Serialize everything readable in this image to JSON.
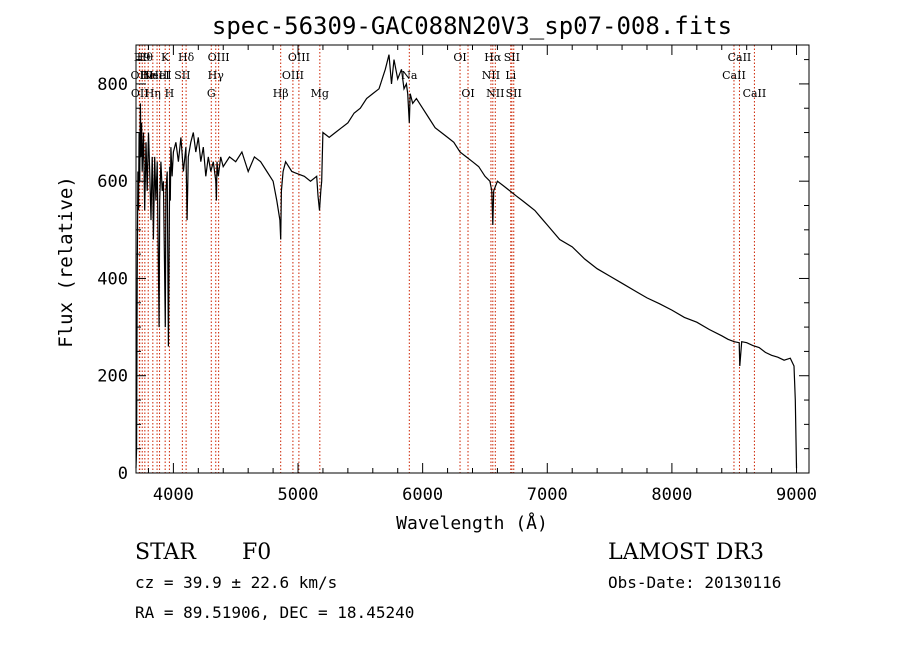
{
  "chart_data": {
    "type": "line",
    "title": "spec-56309-GAC088N20V3_sp07-008.fits",
    "xlabel": "Wavelength (Å)",
    "ylabel": "Flux (relative)",
    "xlim": [
      3700,
      9100
    ],
    "ylim": [
      0,
      880
    ],
    "xticks": [
      4000,
      5000,
      6000,
      7000,
      8000,
      9000
    ],
    "xtick_labels": [
      "4000",
      "5000",
      "6000",
      "7000",
      "8000",
      "9000"
    ],
    "yticks": [
      0,
      200,
      400,
      600,
      800
    ],
    "ytick_labels": [
      "0",
      "200",
      "400",
      "600",
      "800"
    ],
    "series": [
      {
        "name": "flux",
        "x": [
          3700,
          3705,
          3710,
          3715,
          3720,
          3725,
          3730,
          3735,
          3740,
          3745,
          3750,
          3760,
          3770,
          3780,
          3790,
          3800,
          3810,
          3820,
          3830,
          3835,
          3840,
          3850,
          3860,
          3870,
          3880,
          3885,
          3890,
          3900,
          3910,
          3920,
          3930,
          3935,
          3940,
          3950,
          3960,
          3965,
          3970,
          3975,
          3980,
          3990,
          4000,
          4020,
          4040,
          4060,
          4080,
          4100,
          4110,
          4120,
          4140,
          4160,
          4180,
          4200,
          4220,
          4240,
          4260,
          4280,
          4300,
          4320,
          4340,
          4345,
          4350,
          4360,
          4380,
          4400,
          4450,
          4500,
          4550,
          4600,
          4650,
          4700,
          4750,
          4800,
          4830,
          4855,
          4861,
          4867,
          4880,
          4900,
          4950,
          5000,
          5050,
          5100,
          5150,
          5160,
          5172,
          5183,
          5190,
          5200,
          5250,
          5300,
          5350,
          5400,
          5450,
          5500,
          5550,
          5600,
          5650,
          5700,
          5730,
          5750,
          5770,
          5800,
          5830,
          5850,
          5870,
          5880,
          5893,
          5900,
          5920,
          5950,
          6000,
          6050,
          6100,
          6150,
          6200,
          6250,
          6300,
          6350,
          6400,
          6450,
          6500,
          6540,
          6555,
          6563,
          6570,
          6600,
          6650,
          6700,
          6750,
          6800,
          6850,
          6900,
          6950,
          7000,
          7100,
          7200,
          7300,
          7400,
          7500,
          7600,
          7700,
          7800,
          7900,
          8000,
          8100,
          8200,
          8300,
          8400,
          8450,
          8500,
          8540,
          8545,
          8560,
          8600,
          8650,
          8700,
          8750,
          8800,
          8850,
          8900,
          8950,
          8980,
          8990,
          9000
        ],
        "y": [
          10,
          50,
          400,
          620,
          540,
          700,
          600,
          760,
          650,
          720,
          620,
          700,
          540,
          680,
          580,
          700,
          620,
          520,
          650,
          600,
          480,
          650,
          560,
          640,
          420,
          300,
          560,
          640,
          580,
          600,
          400,
          300,
          580,
          620,
          260,
          420,
          630,
          560,
          670,
          610,
          660,
          680,
          640,
          690,
          620,
          670,
          520,
          650,
          680,
          700,
          660,
          690,
          640,
          670,
          610,
          650,
          620,
          640,
          600,
          560,
          640,
          610,
          650,
          630,
          650,
          640,
          660,
          620,
          650,
          640,
          620,
          600,
          560,
          520,
          480,
          580,
          620,
          640,
          620,
          615,
          610,
          600,
          610,
          570,
          540,
          580,
          600,
          700,
          690,
          700,
          710,
          720,
          740,
          750,
          770,
          780,
          790,
          830,
          860,
          800,
          850,
          810,
          830,
          790,
          800,
          780,
          720,
          780,
          760,
          770,
          750,
          730,
          710,
          700,
          690,
          680,
          660,
          650,
          640,
          630,
          610,
          600,
          580,
          510,
          580,
          600,
          590,
          580,
          570,
          560,
          550,
          540,
          525,
          510,
          480,
          465,
          440,
          420,
          405,
          390,
          375,
          360,
          348,
          335,
          320,
          310,
          295,
          282,
          275,
          270,
          268,
          220,
          270,
          268,
          262,
          258,
          248,
          242,
          238,
          232,
          236,
          220,
          150,
          10
        ]
      }
    ],
    "lines": [
      {
        "x": 3727,
        "label": "OII",
        "row": 1
      },
      {
        "x": 3730,
        "label": "OII",
        "row": 2
      },
      {
        "x": 3750,
        "label": "H9",
        "row": 0
      },
      {
        "x": 3771,
        "label": "Hθ",
        "row": 0
      },
      {
        "x": 3798,
        "label": "He",
        "row": 1
      },
      {
        "x": 3835,
        "label": "Hη",
        "row": 2
      },
      {
        "x": 3869,
        "label": "NeIII",
        "row": 1
      },
      {
        "x": 3889,
        "label": "HeI",
        "row": 1
      },
      {
        "x": 3934,
        "label": "K",
        "row": 0
      },
      {
        "x": 3968,
        "label": "H",
        "row": 2
      },
      {
        "x": 4072,
        "label": "SII",
        "row": 1
      },
      {
        "x": 4102,
        "label": "Hδ",
        "row": 0
      },
      {
        "x": 4304,
        "label": "G",
        "row": 2
      },
      {
        "x": 4340,
        "label": "Hγ",
        "row": 1
      },
      {
        "x": 4363,
        "label": "OIII",
        "row": 0
      },
      {
        "x": 4861,
        "label": "Hβ",
        "row": 2
      },
      {
        "x": 4959,
        "label": "OIII",
        "row": 1
      },
      {
        "x": 5007,
        "label": "OIII",
        "row": 0
      },
      {
        "x": 5175,
        "label": "Mg",
        "row": 2
      },
      {
        "x": 5893,
        "label": "Na",
        "row": 1
      },
      {
        "x": 6300,
        "label": "OI",
        "row": 0
      },
      {
        "x": 6364,
        "label": "OI",
        "row": 2
      },
      {
        "x": 6548,
        "label": "NII",
        "row": 1
      },
      {
        "x": 6563,
        "label": "Hα",
        "row": 0
      },
      {
        "x": 6583,
        "label": "NII",
        "row": 2
      },
      {
        "x": 6707,
        "label": "Li",
        "row": 1
      },
      {
        "x": 6716,
        "label": "SII",
        "row": 0
      },
      {
        "x": 6731,
        "label": "SII",
        "row": 2
      },
      {
        "x": 8498,
        "label": "CaII",
        "row": 1
      },
      {
        "x": 8542,
        "label": "CaII",
        "row": 0
      },
      {
        "x": 8662,
        "label": "CaII",
        "row": 2
      }
    ]
  },
  "info": {
    "object_type": "STAR",
    "subclass": "F0",
    "survey": "LAMOST DR3",
    "cz": "cz = 39.9 ± 22.6 km/s",
    "obs_date": "Obs-Date: 20130116",
    "coords": "RA =  89.51906, DEC =  18.45240"
  },
  "colors": {
    "line": "#000000",
    "marker": "#cc2200"
  }
}
